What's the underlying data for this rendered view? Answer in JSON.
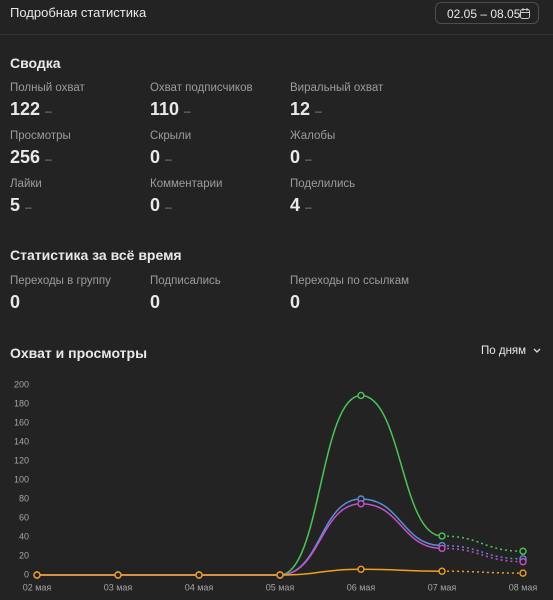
{
  "header": {
    "title": "Подробная статистика",
    "date_range": "02.05 – 08.05"
  },
  "summary": {
    "title": "Сводка",
    "items": [
      {
        "label": "Полный охват",
        "value": 122,
        "trend": "–"
      },
      {
        "label": "Охват подписчиков",
        "value": 110,
        "trend": "–"
      },
      {
        "label": "Виральный охват",
        "value": 12,
        "trend": "–"
      },
      {
        "label": "Просмотры",
        "value": 256,
        "trend": "–"
      },
      {
        "label": "Скрыли",
        "value": 0,
        "trend": "–"
      },
      {
        "label": "Жалобы",
        "value": 0,
        "trend": "–"
      },
      {
        "label": "Лайки",
        "value": 5,
        "trend": "–"
      },
      {
        "label": "Комментарии",
        "value": 0,
        "trend": "–"
      },
      {
        "label": "Поделились",
        "value": 4,
        "trend": "–"
      }
    ]
  },
  "alltime": {
    "title": "Статистика за всё время",
    "items": [
      {
        "label": "Переходы в группу",
        "value": 0
      },
      {
        "label": "Подписались",
        "value": 0
      },
      {
        "label": "Переходы по ссылкам",
        "value": 0
      }
    ]
  },
  "chart_data": {
    "type": "line",
    "title": "Охват и просмотры",
    "period": "По дням",
    "categories": [
      "02 мая",
      "03 мая",
      "04 мая",
      "05 мая",
      "06 мая",
      "07 мая",
      "08 мая"
    ],
    "series": [
      {
        "color": "#4cc45a",
        "values": [
          0,
          0,
          0,
          0,
          189,
          41,
          25
        ]
      },
      {
        "color": "#5b8fd6",
        "values": [
          0,
          0,
          0,
          0,
          80,
          31,
          17
        ]
      },
      {
        "color": "#c552c8",
        "values": [
          0,
          0,
          0,
          0,
          75,
          28,
          14
        ]
      },
      {
        "color": "#f0a020",
        "values": [
          0,
          0,
          0,
          0,
          6,
          4,
          2
        ]
      }
    ],
    "ylim": [
      0,
      200
    ],
    "yticks": [
      0,
      20,
      40,
      60,
      80,
      100,
      120,
      140,
      160,
      180,
      200
    ],
    "grid": false
  }
}
